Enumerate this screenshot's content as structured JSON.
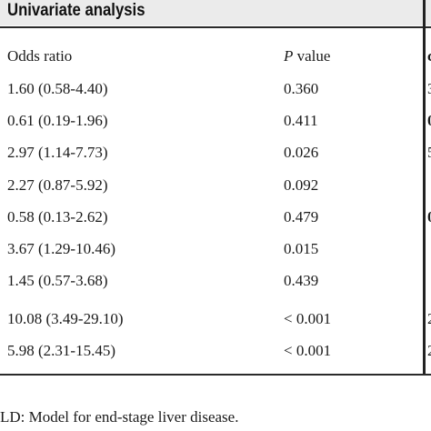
{
  "header": {
    "title": "Univariate analysis"
  },
  "columns": {
    "odds_ratio": "Odds ratio",
    "p_label": "P",
    "p_suffix": " value"
  },
  "rows": [
    {
      "or": "1.60 (0.58-4.40)",
      "p": "0.360"
    },
    {
      "or": "0.61 (0.19-1.96)",
      "p": "0.411"
    },
    {
      "or": "2.97 (1.14-7.73)",
      "p": "0.026"
    },
    {
      "or": "2.27 (0.87-5.92)",
      "p": "0.092"
    },
    {
      "or": "0.58 (0.13-2.62)",
      "p": "0.479"
    },
    {
      "or": "3.67 (1.29-10.46)",
      "p": "0.015"
    },
    {
      "or": "1.45 (0.57-3.68)",
      "p": "0.439"
    },
    {
      "or": "10.08 (3.49-29.10)",
      "p": "< 0.001"
    },
    {
      "or": "5.98 (2.31-15.45)",
      "p": "< 0.001"
    }
  ],
  "next_column_fragments": [
    "c",
    "3",
    "0",
    "5",
    "",
    "0",
    "",
    "2",
    "2"
  ],
  "footnote": "LD: Model for end-stage liver disease."
}
